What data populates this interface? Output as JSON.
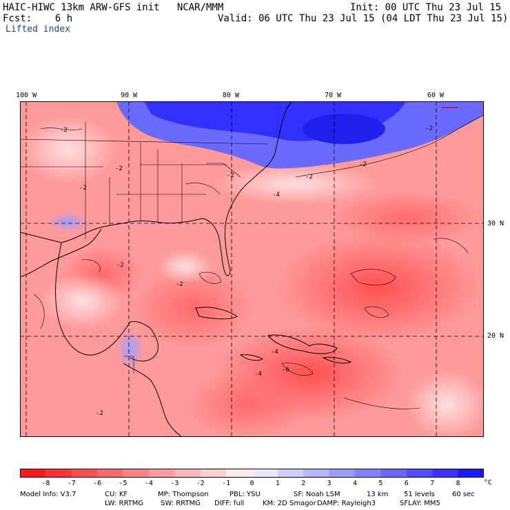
{
  "header": {
    "title": "HAIC-HIWC 13km ARW-GFS init   NCAR/MMM",
    "init": "Init: 00 UTC Thu 23 Jul 15",
    "fcst": "Fcst:    6 h",
    "valid": "Valid: 06 UTC Thu 23 Jul 15 (04 LDT Thu 23 Jul 15)",
    "field": "Lifted index"
  },
  "map": {
    "lon_labels": [
      "100 W",
      "90 W",
      "80 W",
      "70 W",
      "60 W"
    ],
    "lat_labels": [
      "30 N",
      "20 N"
    ],
    "contour_labels": [
      "-2",
      "-4",
      "-6"
    ]
  },
  "colorbar": {
    "unit": "°C",
    "tick_labels": [
      "-8",
      "-7",
      "-6",
      "-5",
      "-4",
      "-3",
      "-2",
      "-1",
      "0",
      "1",
      "2",
      "3",
      "4",
      "5",
      "6",
      "7",
      "8"
    ],
    "colors": [
      "#ff1a1a",
      "#ff3535",
      "#ff4e4e",
      "#ff6868",
      "#ff8282",
      "#ff9c9c",
      "#ffb6b6",
      "#ffd0d0",
      "#ffeaea",
      "#eaeaff",
      "#d0d0ff",
      "#b6b6ff",
      "#9c9cff",
      "#8282ff",
      "#6868ff",
      "#4e4eff",
      "#3535ff",
      "#1a1aff"
    ]
  },
  "info": {
    "line1": [
      "Model Info: V3.7",
      "CU: KF",
      "MP: Thompson",
      "PBL: YSU",
      "SF: Noah LSM",
      "13 km",
      "51 levels",
      "60 sec"
    ],
    "line2": [
      "LW: RRTMG",
      "SW: RRTMG",
      "DIFF: full",
      "KM: 2D Smagor",
      "DAMP: Rayleigh3",
      "SFLAY: MM5"
    ]
  }
}
